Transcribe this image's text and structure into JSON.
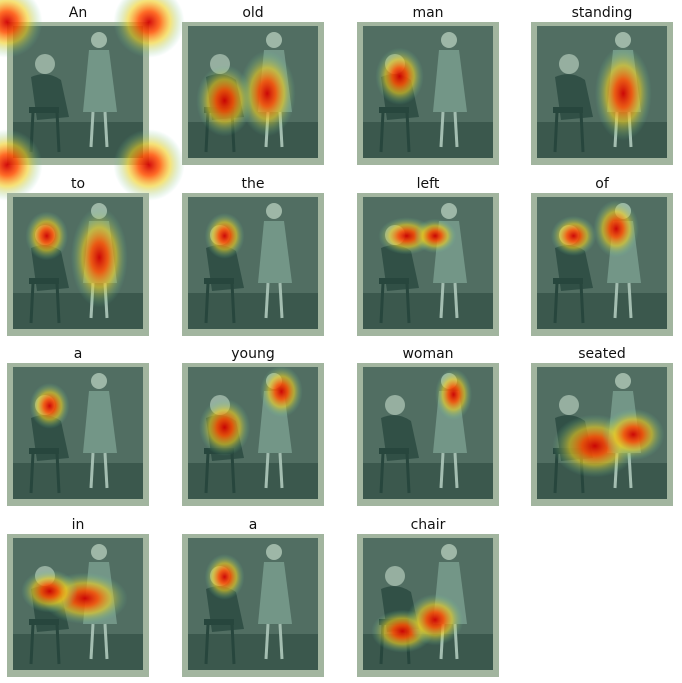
{
  "panels": [
    {
      "label": "An"
    },
    {
      "label": "old"
    },
    {
      "label": "man"
    },
    {
      "label": "standing"
    },
    {
      "label": "to"
    },
    {
      "label": "the"
    },
    {
      "label": "left"
    },
    {
      "label": "of"
    },
    {
      "label": "a"
    },
    {
      "label": "young"
    },
    {
      "label": "woman"
    },
    {
      "label": "seated"
    },
    {
      "label": "in"
    },
    {
      "label": "a"
    },
    {
      "label": "chair"
    }
  ]
}
